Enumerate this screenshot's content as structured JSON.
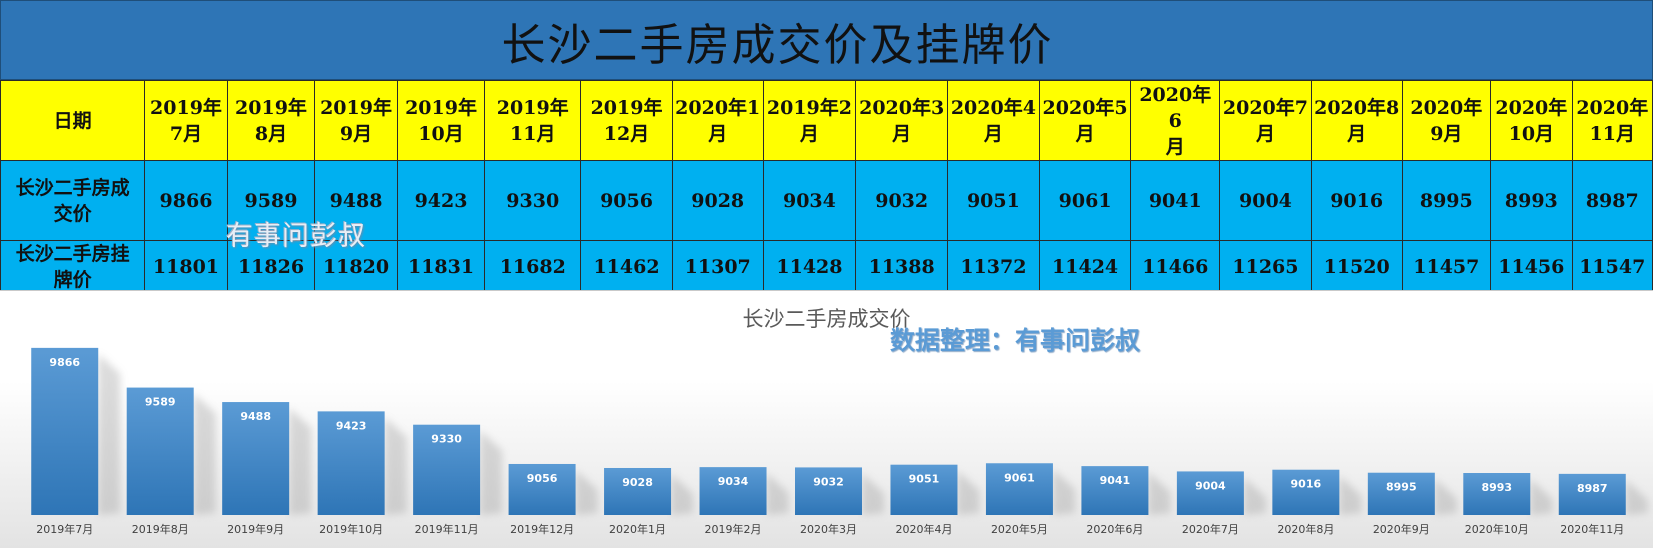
{
  "page_title": "长沙二手房成交价及挂牌价",
  "table": {
    "header_label": "日期",
    "months": [
      "2019年7月",
      "2019年8月",
      "2019年9月",
      "2019年10月",
      "2019年11月",
      "2019年12月",
      "2020年1月",
      "2019年2月",
      "2020年3月",
      "2020年4月",
      "2020年5月",
      "2020年6月",
      "2020年7月",
      "2020年8月",
      "2020年9月",
      "2020年10月",
      "2020年11月"
    ],
    "month_lines": [
      [
        "2019年",
        "7月"
      ],
      [
        "2019年",
        "8月"
      ],
      [
        "2019年",
        "9月"
      ],
      [
        "2019年",
        "10月"
      ],
      [
        "2019年",
        "11月"
      ],
      [
        "2019年",
        "12月"
      ],
      [
        "2020年1",
        "月"
      ],
      [
        "2019年2",
        "月"
      ],
      [
        "2020年3",
        "月"
      ],
      [
        "2020年4",
        "月"
      ],
      [
        "2020年5",
        "月"
      ],
      [
        "2020年6",
        "月"
      ],
      [
        "2020年7",
        "月"
      ],
      [
        "2020年8",
        "月"
      ],
      [
        "2020年",
        "9月"
      ],
      [
        "2020年",
        "10月"
      ],
      [
        "2020年",
        "11月"
      ]
    ],
    "rows": [
      {
        "label_lines": [
          "长沙二手房成",
          "交价"
        ],
        "values": [
          "9866",
          "9589",
          "9488",
          "9423",
          "9330",
          "9056",
          "9028",
          "9034",
          "9032",
          "9051",
          "9061",
          "9041",
          "9004",
          "9016",
          "8995",
          "8993",
          "8987"
        ]
      },
      {
        "label_lines": [
          "长沙二手房挂",
          "牌价"
        ],
        "values": [
          "11801",
          "11826",
          "11820",
          "11831",
          "11682",
          "11462",
          "11307",
          "11428",
          "11388",
          "11372",
          "11424",
          "11466",
          "11265",
          "11520",
          "11457",
          "11456",
          "11547"
        ]
      }
    ]
  },
  "watermark": "有事问彭叔",
  "chart_note": "数据整理：有事问彭叔",
  "colors": {
    "title_bar": "#2e75b6",
    "header_row": "#ffff00",
    "value_rows": "#00b0f0",
    "bar_top": "#5b9bd5",
    "bar_bottom": "#2e75b6"
  },
  "chart_data": {
    "type": "bar",
    "title": "长沙二手房成交价",
    "categories": [
      "2019年7月",
      "2019年8月",
      "2019年9月",
      "2019年10月",
      "2019年11月",
      "2019年12月",
      "2020年1月",
      "2019年2月",
      "2020年3月",
      "2020年4月",
      "2020年5月",
      "2020年6月",
      "2020年7月",
      "2020年8月",
      "2020年9月",
      "2020年10月",
      "2020年11月"
    ],
    "values": [
      9866,
      9589,
      9488,
      9423,
      9330,
      9056,
      9028,
      9034,
      9032,
      9051,
      9061,
      9041,
      9004,
      9016,
      8995,
      8993,
      8987
    ],
    "xlabel": "",
    "ylabel": "",
    "ylim": [
      8700,
      9900
    ],
    "grid": false,
    "data_labels": true,
    "axes_visible": false
  }
}
